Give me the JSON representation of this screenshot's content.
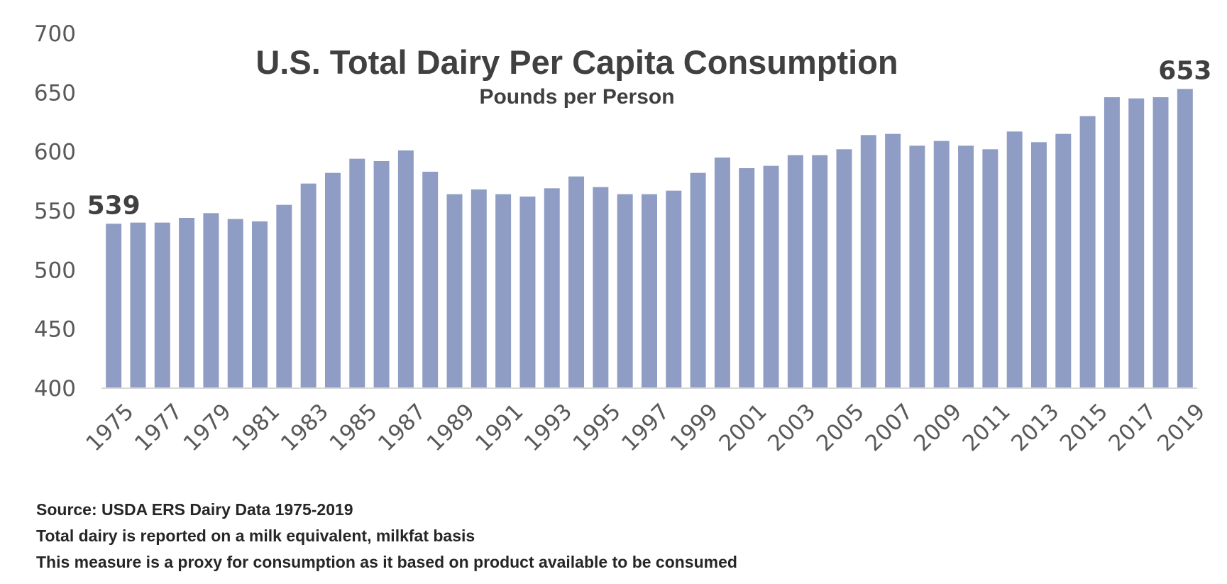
{
  "chart_data": {
    "type": "bar",
    "title": "U.S. Total Dairy Per Capita Consumption",
    "subtitle": "Pounds per Person",
    "xlabel": "",
    "ylabel": "",
    "ylim": [
      400,
      700
    ],
    "yticks": [
      "400",
      "450",
      "500",
      "550",
      "600",
      "650",
      "700"
    ],
    "grid": false,
    "bar_color": "#8f9cc4",
    "categories": [
      "1975",
      "1976",
      "1977",
      "1978",
      "1979",
      "1980",
      "1981",
      "1982",
      "1983",
      "1984",
      "1985",
      "1986",
      "1987",
      "1988",
      "1989",
      "1990",
      "1991",
      "1992",
      "1993",
      "1994",
      "1995",
      "1996",
      "1997",
      "1998",
      "1999",
      "2000",
      "2001",
      "2002",
      "2003",
      "2004",
      "2005",
      "2006",
      "2007",
      "2008",
      "2009",
      "2010",
      "2011",
      "2012",
      "2013",
      "2014",
      "2015",
      "2016",
      "2017",
      "2018",
      "2019"
    ],
    "xtick_labels": [
      "1975",
      "1977",
      "1979",
      "1981",
      "1983",
      "1985",
      "1987",
      "1989",
      "1991",
      "1993",
      "1995",
      "1997",
      "1999",
      "2001",
      "2003",
      "2005",
      "2007",
      "2009",
      "2011",
      "2013",
      "2015",
      "2017",
      "2019"
    ],
    "values": [
      539,
      540,
      540,
      544,
      548,
      543,
      541,
      555,
      573,
      582,
      594,
      592,
      601,
      583,
      564,
      568,
      564,
      562,
      569,
      579,
      570,
      564,
      564,
      567,
      582,
      595,
      586,
      588,
      597,
      597,
      602,
      614,
      615,
      605,
      609,
      605,
      602,
      617,
      608,
      615,
      630,
      646,
      645,
      646,
      653
    ],
    "data_labels": [
      {
        "category": "1975",
        "text": "539"
      },
      {
        "category": "2019",
        "text": "653"
      }
    ]
  },
  "notes": [
    "Source: USDA ERS Dairy Data 1975-2019",
    "Total dairy is reported on a milk equivalent, milkfat basis",
    "This measure is a proxy for consumption as it based on product available to be consumed"
  ]
}
